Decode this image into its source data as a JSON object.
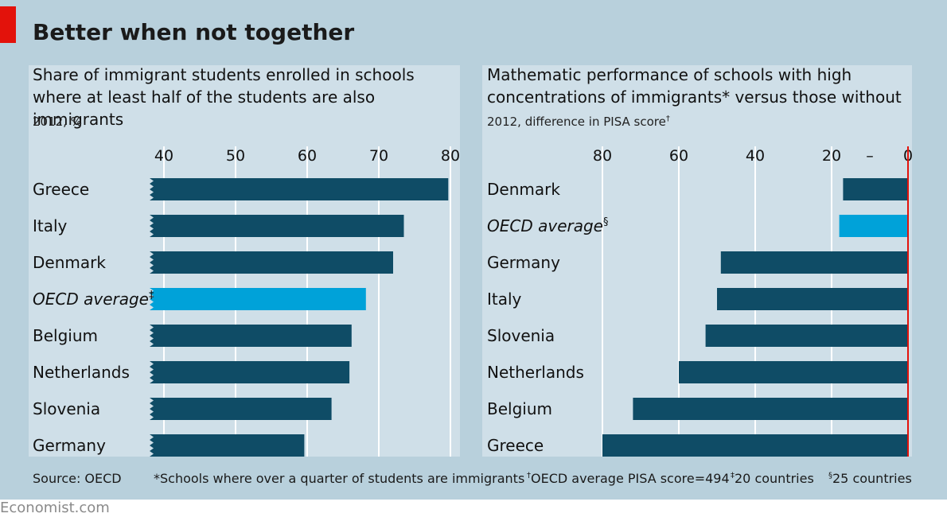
{
  "title": "Better when not together",
  "colors": {
    "bar": "#0f4c66",
    "highlight": "#00a2d9",
    "zero_line": "#e3120b",
    "grid": "#ffffff"
  },
  "source": "Source: OECD",
  "footnotes": {
    "star": "*Schools where over a quarter of students are immigrants",
    "dagger_mark": "†",
    "dagger": "OECD average PISA score=494",
    "ddagger_mark": "‡",
    "ddagger": "20 countries",
    "section_mark": "§",
    "section": "25 countries"
  },
  "brand": "Economist.com",
  "chart_data": [
    {
      "type": "bar",
      "orientation": "horizontal",
      "title": "Share of immigrant students enrolled in schools where at least half of the students are also immigrants",
      "subtitle": "2012, %",
      "categories": [
        "Greece",
        "Italy",
        "Denmark",
        "OECD average",
        "Belgium",
        "Netherlands",
        "Slovenia",
        "Germany"
      ],
      "category_marks": [
        "",
        "",
        "",
        "‡",
        "",
        "",
        "",
        ""
      ],
      "highlight": [
        "OECD average"
      ],
      "values": [
        79.7,
        73.5,
        72.0,
        68.2,
        66.2,
        65.9,
        63.4,
        59.6
      ],
      "xlim": [
        38,
        80
      ],
      "ticks": [
        40,
        50,
        60,
        70,
        80
      ],
      "axis_break": true,
      "grid": true
    },
    {
      "type": "bar",
      "orientation": "horizontal",
      "title": "Mathematic performance of schools with high concentrations of immigrants* versus those without",
      "subtitle": "2012, difference in PISA score",
      "subtitle_mark": "†",
      "categories": [
        "Denmark",
        "OECD average",
        "Germany",
        "Italy",
        "Slovenia",
        "Netherlands",
        "Belgium",
        "Greece"
      ],
      "category_marks": [
        "",
        "§",
        "",
        "",
        "",
        "",
        "",
        ""
      ],
      "highlight": [
        "OECD average"
      ],
      "values": [
        -17,
        -18,
        -49,
        -50,
        -53,
        -60,
        -72,
        -80
      ],
      "xlim": [
        -80,
        0
      ],
      "ticks": [
        80,
        60,
        40,
        20,
        0
      ],
      "tick_labels": [
        "80",
        "60",
        "40",
        "20",
        "–",
        "0"
      ],
      "grid": true
    }
  ]
}
